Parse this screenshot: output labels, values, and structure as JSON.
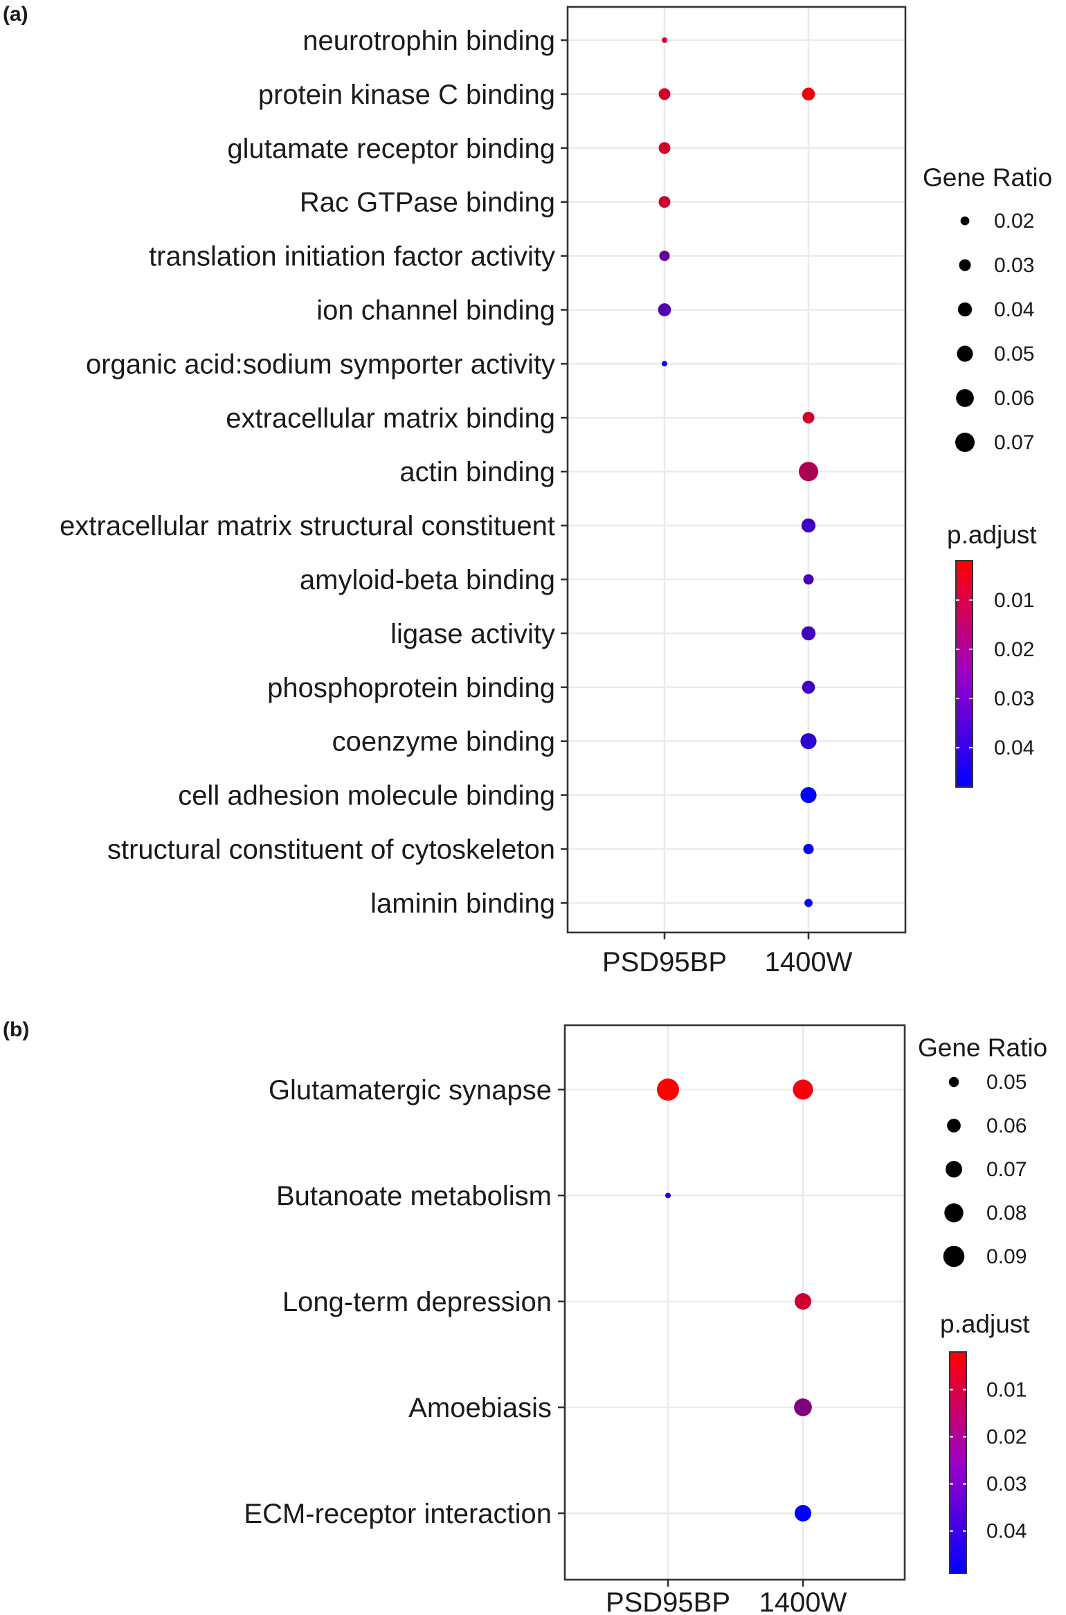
{
  "chart_data": [
    {
      "panel_tag": "(a)",
      "type": "scatter",
      "x_categories": [
        "PSD95BP",
        "1400W"
      ],
      "y_categories": [
        "neurotrophin binding",
        "protein kinase C binding",
        "glutamate receptor binding",
        "Rac GTPase binding",
        "translation initiation factor activity",
        "ion channel binding",
        "organic acid:sodium symporter activity",
        "extracellular matrix binding",
        "actin binding",
        "extracellular matrix structural constituent",
        "amyloid-beta binding",
        "ligase activity",
        "phosphoprotein binding",
        "coenzyme binding",
        "cell adhesion molecule binding",
        "structural constituent of cytoskeleton",
        "laminin binding"
      ],
      "points": [
        {
          "x": "PSD95BP",
          "y": "neurotrophin binding",
          "gene_ratio": 0.012,
          "p_adjust": 0.011
        },
        {
          "x": "PSD95BP",
          "y": "protein kinase C binding",
          "gene_ratio": 0.03,
          "p_adjust": 0.01
        },
        {
          "x": "1400W",
          "y": "protein kinase C binding",
          "gene_ratio": 0.035,
          "p_adjust": 0.005
        },
        {
          "x": "PSD95BP",
          "y": "glutamate receptor binding",
          "gene_ratio": 0.03,
          "p_adjust": 0.01
        },
        {
          "x": "PSD95BP",
          "y": "Rac GTPase binding",
          "gene_ratio": 0.03,
          "p_adjust": 0.011
        },
        {
          "x": "PSD95BP",
          "y": "translation initiation factor activity",
          "gene_ratio": 0.025,
          "p_adjust": 0.03
        },
        {
          "x": "PSD95BP",
          "y": "ion channel binding",
          "gene_ratio": 0.035,
          "p_adjust": 0.033
        },
        {
          "x": "PSD95BP",
          "y": "organic acid:sodium symporter activity",
          "gene_ratio": 0.012,
          "p_adjust": 0.045
        },
        {
          "x": "1400W",
          "y": "extracellular matrix binding",
          "gene_ratio": 0.03,
          "p_adjust": 0.01
        },
        {
          "x": "1400W",
          "y": "actin binding",
          "gene_ratio": 0.07,
          "p_adjust": 0.017
        },
        {
          "x": "1400W",
          "y": "extracellular matrix structural constituent",
          "gene_ratio": 0.04,
          "p_adjust": 0.037
        },
        {
          "x": "1400W",
          "y": "amyloid-beta binding",
          "gene_ratio": 0.025,
          "p_adjust": 0.035
        },
        {
          "x": "1400W",
          "y": "ligase activity",
          "gene_ratio": 0.04,
          "p_adjust": 0.036
        },
        {
          "x": "1400W",
          "y": "phosphoprotein binding",
          "gene_ratio": 0.035,
          "p_adjust": 0.037
        },
        {
          "x": "1400W",
          "y": "coenzyme binding",
          "gene_ratio": 0.05,
          "p_adjust": 0.04
        },
        {
          "x": "1400W",
          "y": "cell adhesion molecule binding",
          "gene_ratio": 0.05,
          "p_adjust": 0.048
        },
        {
          "x": "1400W",
          "y": "structural constituent of cytoskeleton",
          "gene_ratio": 0.025,
          "p_adjust": 0.048
        },
        {
          "x": "1400W",
          "y": "laminin binding",
          "gene_ratio": 0.018,
          "p_adjust": 0.048
        }
      ],
      "size_legend": {
        "title": "Gene Ratio",
        "values": [
          0.02,
          0.03,
          0.04,
          0.05,
          0.06,
          0.07
        ],
        "labels": [
          "0.02",
          "0.03",
          "0.04",
          "0.05",
          "0.06",
          "0.07"
        ],
        "range": [
          0.012,
          0.07
        ]
      },
      "color_legend": {
        "title": "p.adjust",
        "ticks": [
          0.01,
          0.02,
          0.03,
          0.04
        ],
        "labels": [
          "0.01",
          "0.02",
          "0.03",
          "0.04"
        ],
        "range": [
          0.002,
          0.048
        ],
        "low_color": "#ff0000",
        "high_color": "#0000ff"
      },
      "grid": true,
      "legend_position": "right"
    },
    {
      "panel_tag": "(b)",
      "type": "scatter",
      "x_categories": [
        "PSD95BP",
        "1400W"
      ],
      "y_categories": [
        "Glutamatergic synapse",
        "Butanoate metabolism",
        "Long-term depression",
        "Amoebiasis",
        "ECM-receptor interaction"
      ],
      "points": [
        {
          "x": "PSD95BP",
          "y": "Glutamatergic synapse",
          "gene_ratio": 0.095,
          "p_adjust": 0.002
        },
        {
          "x": "1400W",
          "y": "Glutamatergic synapse",
          "gene_ratio": 0.085,
          "p_adjust": 0.004
        },
        {
          "x": "PSD95BP",
          "y": "Butanoate metabolism",
          "gene_ratio": 0.042,
          "p_adjust": 0.045
        },
        {
          "x": "1400W",
          "y": "Long-term depression",
          "gene_ratio": 0.07,
          "p_adjust": 0.011
        },
        {
          "x": "1400W",
          "y": "Amoebiasis",
          "gene_ratio": 0.075,
          "p_adjust": 0.025
        },
        {
          "x": "1400W",
          "y": "ECM-receptor interaction",
          "gene_ratio": 0.07,
          "p_adjust": 0.049
        }
      ],
      "size_legend": {
        "title": "Gene Ratio",
        "values": [
          0.05,
          0.06,
          0.07,
          0.08,
          0.09
        ],
        "labels": [
          "0.05",
          "0.06",
          "0.07",
          "0.08",
          "0.09"
        ],
        "range": [
          0.042,
          0.095
        ]
      },
      "color_legend": {
        "title": "p.adjust",
        "ticks": [
          0.01,
          0.02,
          0.03,
          0.04
        ],
        "labels": [
          "0.01",
          "0.02",
          "0.03",
          "0.04"
        ],
        "range": [
          0.002,
          0.049
        ],
        "low_color": "#ff0000",
        "high_color": "#0000ff"
      },
      "grid": true,
      "legend_position": "right"
    }
  ]
}
